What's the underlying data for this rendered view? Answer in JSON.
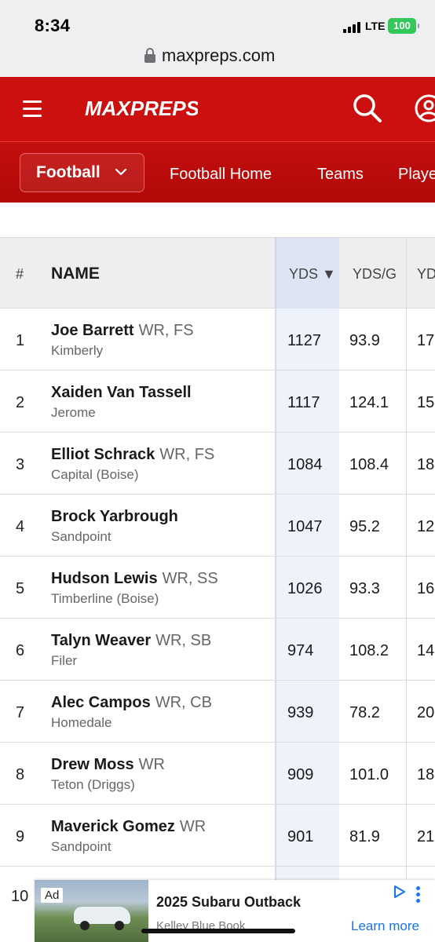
{
  "status": {
    "time": "8:34",
    "network": "LTE",
    "battery": "100"
  },
  "browser": {
    "url": "maxpreps.com"
  },
  "header": {
    "logo_text": "MAXPREPS"
  },
  "nav": {
    "sport_label": "Football",
    "links": [
      "Football Home",
      "Teams",
      "Playe"
    ]
  },
  "table": {
    "headers": {
      "rank": "#",
      "name": "NAME",
      "yds": "YDS ▼",
      "ydsg": "YDS/G",
      "next": "YD"
    },
    "rows": [
      {
        "rank": "1",
        "name": "Joe Barrett",
        "pos": "WR, FS",
        "school": "Kimberly",
        "yds": "1127",
        "ydsg": "93.9",
        "next": "17"
      },
      {
        "rank": "2",
        "name": "Xaiden Van Tassell",
        "pos": "",
        "school": "Jerome",
        "yds": "1117",
        "ydsg": "124.1",
        "next": "15"
      },
      {
        "rank": "3",
        "name": "Elliot Schrack",
        "pos": "WR, FS",
        "school": "Capital (Boise)",
        "yds": "1084",
        "ydsg": "108.4",
        "next": "18"
      },
      {
        "rank": "4",
        "name": "Brock Yarbrough",
        "pos": "",
        "school": "Sandpoint",
        "yds": "1047",
        "ydsg": "95.2",
        "next": "12"
      },
      {
        "rank": "5",
        "name": "Hudson Lewis",
        "pos": "WR, SS",
        "school": "Timberline (Boise)",
        "yds": "1026",
        "ydsg": "93.3",
        "next": "16"
      },
      {
        "rank": "6",
        "name": "Talyn Weaver",
        "pos": "WR, SB",
        "school": "Filer",
        "yds": "974",
        "ydsg": "108.2",
        "next": "14"
      },
      {
        "rank": "7",
        "name": "Alec Campos",
        "pos": "WR, CB",
        "school": "Homedale",
        "yds": "939",
        "ydsg": "78.2",
        "next": "20"
      },
      {
        "rank": "8",
        "name": "Drew Moss",
        "pos": "WR",
        "school": "Teton (Driggs)",
        "yds": "909",
        "ydsg": "101.0",
        "next": "18"
      },
      {
        "rank": "9",
        "name": "Maverick Gomez",
        "pos": "WR",
        "school": "Sandpoint",
        "yds": "901",
        "ydsg": "81.9",
        "next": "21"
      },
      {
        "rank": "10"
      }
    ]
  },
  "ad": {
    "badge": "Ad",
    "title": "2025 Subaru Outback",
    "source": "Kelley Blue Book",
    "cta": "Learn more"
  },
  "colors": {
    "brand_red": "#cc1010",
    "highlight_col": "#eef2fb",
    "link_blue": "#1a73e8",
    "battery_green": "#34c759"
  },
  "icons": [
    "lock-icon",
    "hamburger-icon",
    "search-icon",
    "user-icon",
    "chevron-down-icon",
    "ad-choices-icon",
    "more-vert-icon"
  ]
}
